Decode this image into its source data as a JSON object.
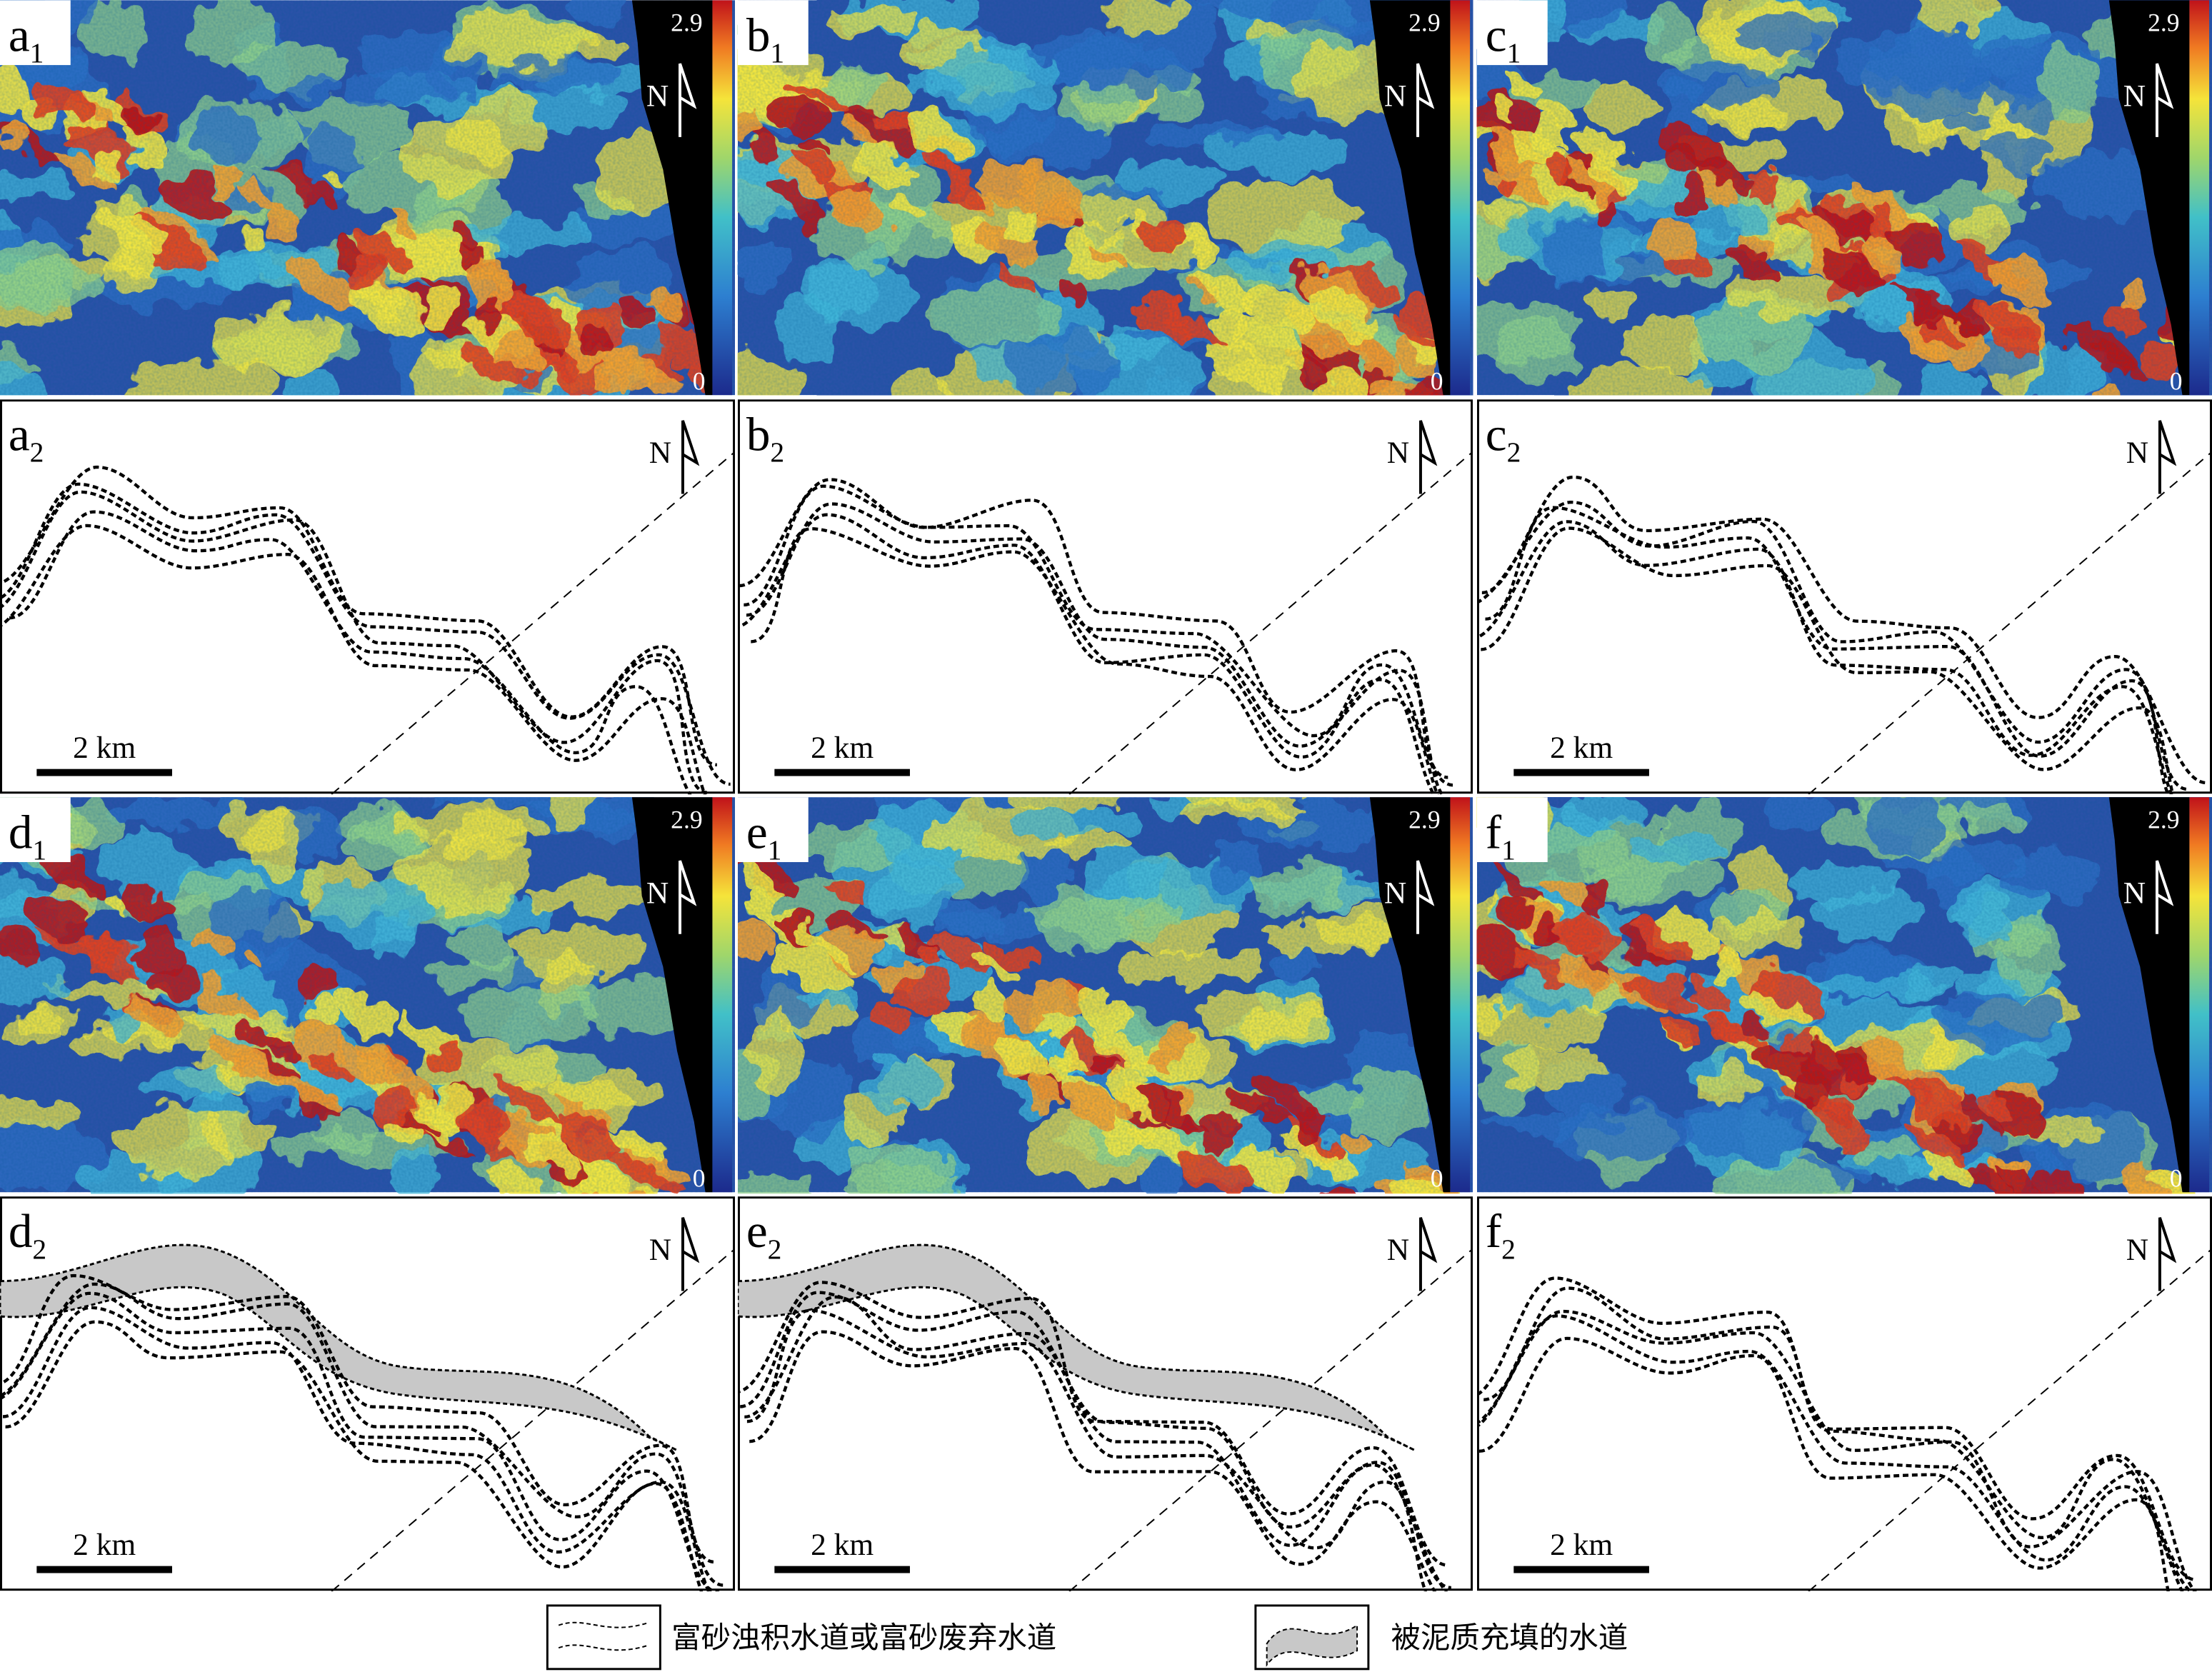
{
  "rows": [
    {
      "kind": "map",
      "panels": [
        {
          "letter": "a",
          "sub": "1",
          "max": "2.9",
          "min": "0",
          "north": "N"
        },
        {
          "letter": "b",
          "sub": "1",
          "max": "2.9",
          "min": "0",
          "north": "N"
        },
        {
          "letter": "c",
          "sub": "1",
          "max": "2.9",
          "min": "0",
          "north": "N"
        }
      ]
    },
    {
      "kind": "sketch",
      "panels": [
        {
          "letter": "a",
          "sub": "2",
          "north": "N",
          "scale": "2 km"
        },
        {
          "letter": "b",
          "sub": "2",
          "north": "N",
          "scale": "2 km"
        },
        {
          "letter": "c",
          "sub": "2",
          "north": "N",
          "scale": "2 km"
        }
      ]
    },
    {
      "kind": "map",
      "panels": [
        {
          "letter": "d",
          "sub": "1",
          "max": "2.9",
          "min": "0",
          "north": "N"
        },
        {
          "letter": "e",
          "sub": "1",
          "max": "2.9",
          "min": "0",
          "north": "N"
        },
        {
          "letter": "f",
          "sub": "1",
          "max": "2.9",
          "min": "0",
          "north": "N"
        }
      ]
    },
    {
      "kind": "sketch",
      "panels": [
        {
          "letter": "d",
          "sub": "2",
          "north": "N",
          "scale": "2 km"
        },
        {
          "letter": "e",
          "sub": "2",
          "north": "N",
          "scale": "2 km"
        },
        {
          "letter": "f",
          "sub": "2",
          "north": "N",
          "scale": "2 km"
        }
      ]
    }
  ],
  "legend": [
    "富砂浊积水道或富砂废弃水道",
    "被泥质充填的水道"
  ]
}
